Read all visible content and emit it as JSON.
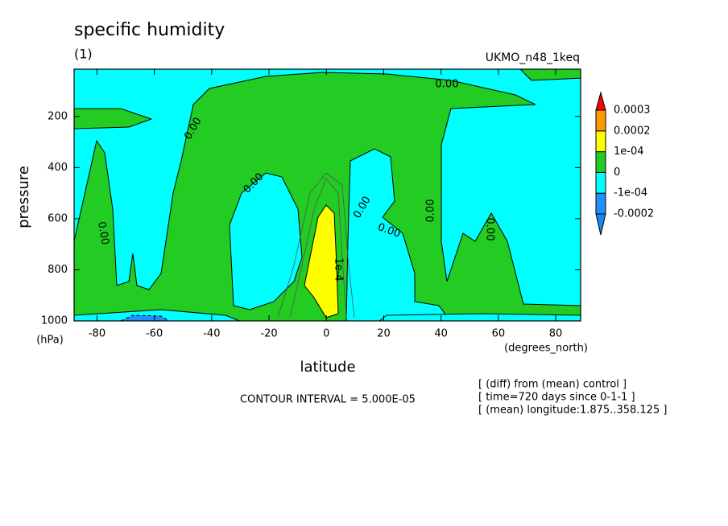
{
  "chart_data": {
    "type": "contour",
    "title": "specific humidity",
    "subtitle": "(1)",
    "dataset": "UKMO_n48_1keq",
    "xlabel": "latitude",
    "x_unit": "(degrees_north)",
    "ylabel": "pressure",
    "y_unit": "(hPa)",
    "xlim": [
      -88,
      88.7
    ],
    "xticks": [
      -80,
      -60,
      -40,
      -20,
      0,
      20,
      40,
      60,
      80
    ],
    "ylim": [
      1000,
      15
    ],
    "yticks": [
      200,
      400,
      600,
      800,
      1000
    ],
    "colorbar": {
      "levels": [
        -0.0002,
        {
          "value": -0.0001,
          "label": "-1e-04"
        },
        0,
        {
          "value": 0.0001,
          "label": "1e-04"
        },
        0.0002,
        0.0003
      ],
      "colors": [
        "#1c86ee",
        "#1e90ff",
        "#00ffff",
        "#22cc22",
        "#ffff00",
        "#ff9900",
        "#ff0000"
      ]
    },
    "contour_labels": [
      "0.00",
      "0.00",
      "0.00",
      "0.00",
      "0.00",
      "0.00",
      "0.00",
      "0.00",
      "1e-4"
    ],
    "contour_interval": "CONTOUR INTERVAL = 5.000E-05",
    "notes": [
      "[ (diff) from (mean) control ]",
      "[ time=720 days since 0-1-1 ]",
      "[ (mean) longitude:1.875..358.125 ]"
    ]
  }
}
